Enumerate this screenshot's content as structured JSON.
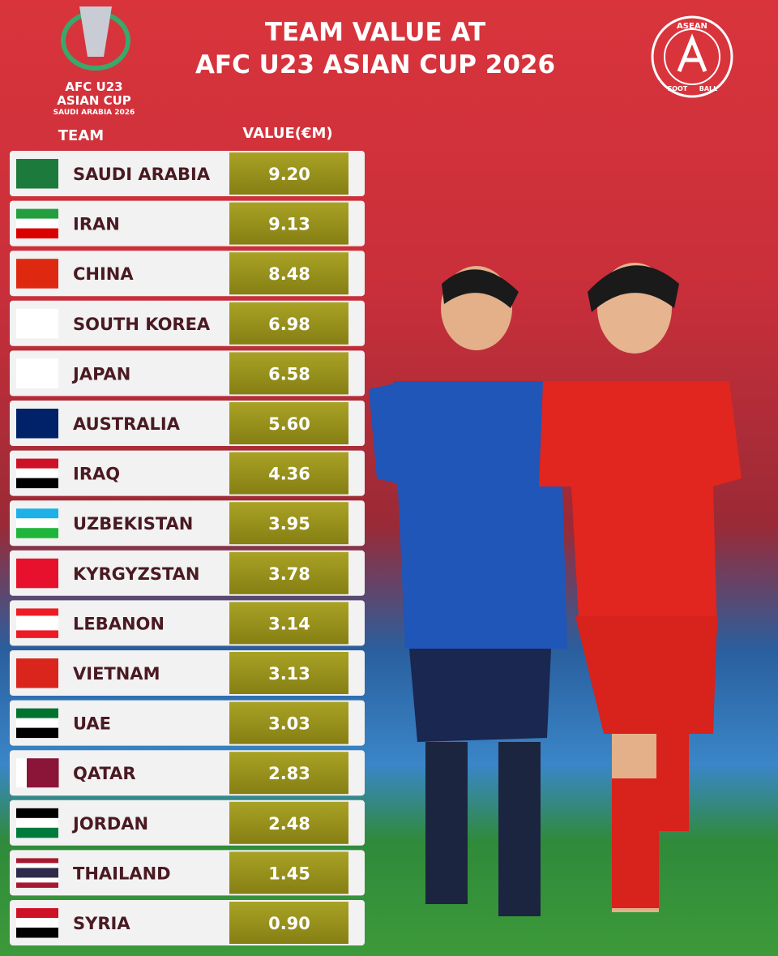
{
  "header": {
    "title_lines": [
      "TEAM VALUE AT",
      "AFC U23 ASIAN CUP 2026"
    ],
    "cup_logo": [
      "AFC U23",
      "ASIAN CUP",
      "SAUDI ARABIA 2026"
    ],
    "asean_logo": [
      "ASEAN",
      "FOOT",
      "BALL"
    ]
  },
  "table": {
    "columns": [
      "TEAM",
      "VALUE(€M)"
    ],
    "rows": [
      [
        "SAUDI ARABIA",
        "9.20"
      ],
      [
        "IRAN",
        "9.13"
      ],
      [
        "CHINA",
        "8.48"
      ],
      [
        "SOUTH KOREA",
        "6.98"
      ],
      [
        "JAPAN",
        "6.58"
      ],
      [
        "AUSTRALIA",
        "5.60"
      ],
      [
        "IRAQ",
        "4.36"
      ],
      [
        "UZBEKISTAN",
        "3.95"
      ],
      [
        "KYRGYZSTAN",
        "3.78"
      ],
      [
        "LEBANON",
        "3.14"
      ],
      [
        "VIETNAM",
        "3.13"
      ],
      [
        "UAE",
        "3.03"
      ],
      [
        "QATAR",
        "2.83"
      ],
      [
        "JORDAN",
        "2.48"
      ],
      [
        "THAILAND",
        "1.45"
      ],
      [
        "SYRIA",
        "0.90"
      ]
    ]
  }
}
